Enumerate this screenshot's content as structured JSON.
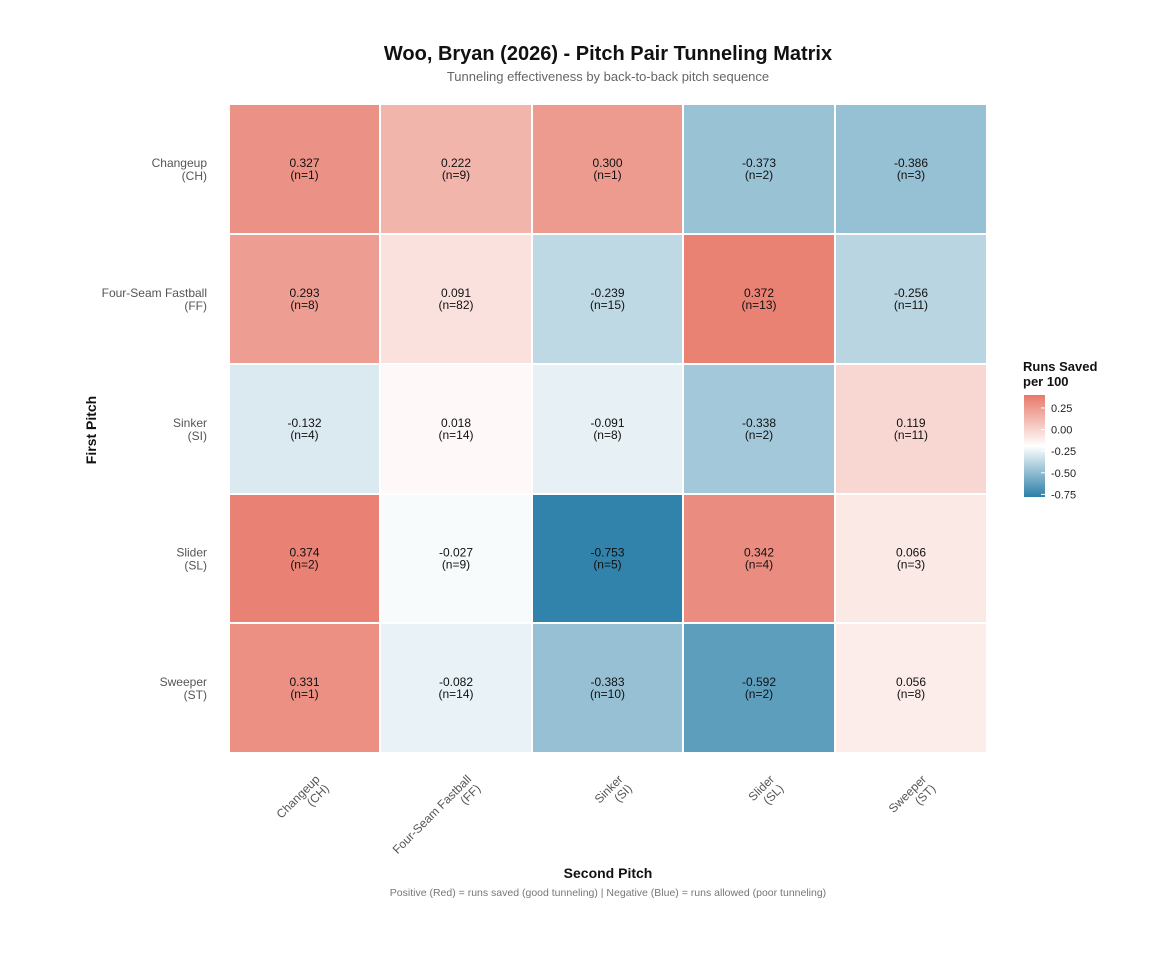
{
  "chart_data": {
    "type": "heatmap",
    "title": "Woo, Bryan (2026) - Pitch Pair Tunneling Matrix",
    "subtitle": "Tunneling effectiveness by back-to-back pitch sequence",
    "ylabel": "First Pitch",
    "xlabel": "Second Pitch",
    "caption": "Positive (Red) = runs saved (good tunneling) | Negative (Blue) = runs allowed (poor tunneling)",
    "rows": [
      {
        "name": "Changeup",
        "code": "(CH)"
      },
      {
        "name": "Four-Seam Fastball",
        "code": "(FF)"
      },
      {
        "name": "Sinker",
        "code": "(SI)"
      },
      {
        "name": "Slider",
        "code": "(SL)"
      },
      {
        "name": "Sweeper",
        "code": "(ST)"
      }
    ],
    "columns": [
      {
        "name": "Changeup",
        "code": "(CH)"
      },
      {
        "name": "Four-Seam Fastball",
        "code": "(FF)"
      },
      {
        "name": "Sinker",
        "code": "(SI)"
      },
      {
        "name": "Slider",
        "code": "(SL)"
      },
      {
        "name": "Sweeper",
        "code": "(ST)"
      }
    ],
    "values": [
      [
        "0.327",
        "0.222",
        "0.300",
        "-0.373",
        "-0.386"
      ],
      [
        "0.293",
        "0.091",
        "-0.239",
        "0.372",
        "-0.256"
      ],
      [
        "-0.132",
        "0.018",
        "-0.091",
        "-0.338",
        "0.119"
      ],
      [
        "0.374",
        "-0.027",
        "-0.753",
        "0.342",
        "0.066"
      ],
      [
        "0.331",
        "-0.082",
        "-0.383",
        "-0.592",
        "0.056"
      ]
    ],
    "counts": [
      [
        "(n=1)",
        "(n=9)",
        "(n=1)",
        "(n=2)",
        "(n=3)"
      ],
      [
        "(n=8)",
        "(n=82)",
        "(n=15)",
        "(n=13)",
        "(n=11)"
      ],
      [
        "(n=4)",
        "(n=14)",
        "(n=8)",
        "(n=2)",
        "(n=11)"
      ],
      [
        "(n=2)",
        "(n=9)",
        "(n=5)",
        "(n=4)",
        "(n=3)"
      ],
      [
        "(n=1)",
        "(n=14)",
        "(n=10)",
        "(n=2)",
        "(n=8)"
      ]
    ],
    "legend": {
      "title_line1": "Runs Saved",
      "title_line2": "per 100",
      "ticks": [
        "0.25",
        "0.00",
        "-0.25",
        "-0.50",
        "-0.75"
      ],
      "range": [
        -0.78,
        0.4
      ],
      "position": "right"
    },
    "colors": {
      "positive": "#e8796a",
      "zero": "#ffffff",
      "negative": "#2b7fa8"
    }
  }
}
